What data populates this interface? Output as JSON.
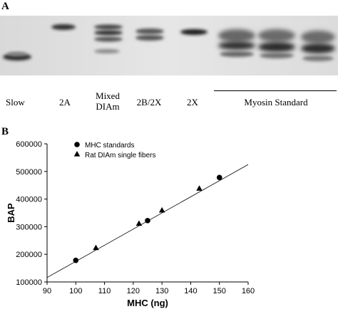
{
  "panel_a": {
    "label": "A",
    "lanes": [
      "Slow",
      "2A",
      "Mixed\nDIAm",
      "2B/2X",
      "2X"
    ],
    "myosin_standard_label": "Myosin Standard"
  },
  "panel_b": {
    "label": "B"
  },
  "chart_data": {
    "type": "scatter",
    "title": "",
    "xlabel": "MHC (ng)",
    "ylabel": "BAP",
    "xlim": [
      90,
      160
    ],
    "ylim": [
      100000,
      600000
    ],
    "x_ticks": [
      90,
      100,
      110,
      120,
      130,
      140,
      150,
      160
    ],
    "y_ticks": [
      100000,
      200000,
      300000,
      400000,
      500000,
      600000
    ],
    "legend_position": "top-left",
    "grid": false,
    "series": [
      {
        "name": "MHC standards",
        "marker": "circle",
        "x": [
          100,
          125,
          150
        ],
        "y": [
          178000,
          322000,
          478000
        ]
      },
      {
        "name": "Rat DIAm single fibers",
        "marker": "triangle",
        "x": [
          107,
          122,
          130,
          143
        ],
        "y": [
          222000,
          310000,
          358000,
          437000
        ]
      }
    ],
    "fit_line": {
      "x": [
        90,
        160
      ],
      "y": [
        116000,
        525000
      ]
    }
  }
}
